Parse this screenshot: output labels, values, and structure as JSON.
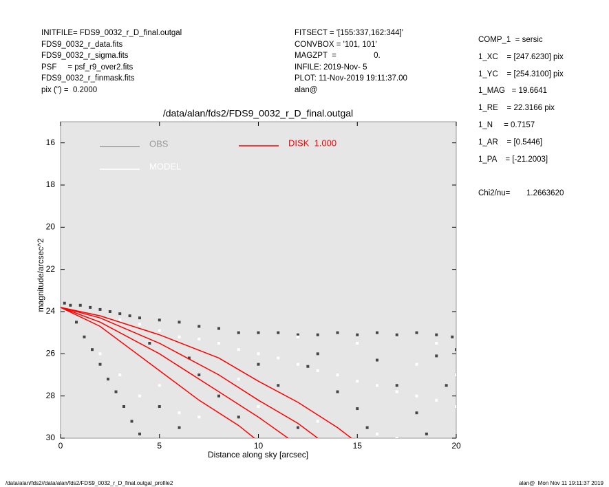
{
  "header": {
    "left": [
      "INITFILE= FDS9_0032_r_D_final.outgal",
      "FDS9_0032_r_data.fits",
      "FDS9_0032_r_sigma.fits",
      "PSF     = psf_r9_over2.fits",
      "FDS9_0032_r_finmask.fits",
      "pix (\") =  0.2000"
    ],
    "middle": [
      "FITSECT = '[155:337,162:344]'",
      "CONVBOX = '101, 101'",
      "MAGZPT  =                 0.",
      "INFILE: 2019-Nov- 5",
      "PLOT: 11-Nov-2019 19:11:37.00",
      "alan@"
    ],
    "right": [
      "COMP_1  = sersic",
      "1_XC    = [247.6230] pix",
      "1_YC    = [254.3100] pix",
      "1_MAG   = 19.6641",
      "1_RE    = 22.3166 pix",
      "1_N     = 0.7157",
      "1_AR    = [0.5446]",
      "1_PA    = [-21.2003]"
    ],
    "chi_label": "Chi2/nu=",
    "chi_value": "1.2663620"
  },
  "footer": {
    "left": "/data/alan/fds2//data/alan/fds2/FDS9_0032_r_D_final.outgal_profile2",
    "right": "alan@  Mon Nov 11 19:11:37 2019"
  },
  "chart_data": {
    "type": "scatter",
    "title": "/data/alan/fds2/FDS9_0032_r_D_final.outgal",
    "x_label": "Distance along sky [arcsec]",
    "y_label": "magnitude/arcsec^2",
    "xlim": [
      0,
      20
    ],
    "xticks": [
      0,
      5,
      10,
      15,
      20
    ],
    "ylim": [
      30,
      15
    ],
    "yticks": [
      16,
      18,
      20,
      22,
      24,
      26,
      28,
      30
    ],
    "series": [
      {
        "name": "OBS",
        "color": "#454545",
        "legend_color": "#999999",
        "x": [
          0.2,
          0.5,
          1,
          1.5,
          2,
          2.5,
          3,
          3.5,
          4,
          0.8,
          1.2,
          1.6,
          2,
          2.4,
          2.8,
          3.2,
          3.6,
          4,
          5,
          6,
          7,
          8,
          9,
          10,
          11,
          12,
          13,
          14,
          15,
          16,
          17,
          18,
          19,
          19.8,
          5,
          6,
          7,
          8,
          9,
          10,
          11,
          12,
          13,
          14,
          15,
          16,
          17,
          18,
          19,
          19.5,
          18.5,
          15.5,
          20,
          12.5,
          4.5,
          6.5
        ],
        "values": [
          23.6,
          23.7,
          23.7,
          23.8,
          23.9,
          24,
          24.1,
          24.2,
          24.3,
          24.5,
          25.2,
          25.8,
          26.5,
          27.2,
          27.8,
          28.5,
          29.2,
          29.8,
          24.4,
          24.5,
          24.7,
          24.8,
          25,
          25,
          25,
          25.1,
          25.1,
          25,
          25.1,
          25,
          25.1,
          25,
          25.1,
          25.2,
          28.5,
          29.5,
          27,
          28,
          29,
          26.5,
          27.5,
          29.5,
          26,
          27.8,
          28.6,
          26.3,
          27.5,
          28.8,
          26.1,
          27.5,
          29.8,
          29.5,
          25.8,
          26.6,
          25.5,
          26.2
        ]
      },
      {
        "name": "MODEL",
        "color": "#ffffff",
        "legend_color": "#ffffff",
        "x": [
          3,
          4,
          5,
          6,
          7,
          8,
          9,
          10,
          11,
          12,
          13,
          14,
          15,
          16,
          17,
          18,
          19,
          20,
          5,
          7,
          10,
          13,
          16,
          18,
          19,
          15,
          12,
          9,
          6,
          4,
          3,
          2,
          17,
          20
        ],
        "values": [
          24.4,
          24.6,
          24.9,
          25.2,
          25.3,
          25.5,
          25.8,
          26,
          26.2,
          26.5,
          26.8,
          27,
          27.3,
          27.5,
          27.8,
          28,
          28.2,
          28.5,
          27.5,
          29,
          28.5,
          29.2,
          29.8,
          26.5,
          25.5,
          25.5,
          25.2,
          27.2,
          28.8,
          28,
          27,
          26,
          30,
          27
        ]
      }
    ],
    "disk": {
      "name": "DISK  1.000",
      "color": "#ff0000",
      "curves": [
        {
          "x": [
            0,
            2,
            5,
            8,
            10,
            12,
            14,
            14.7
          ],
          "values": [
            23.8,
            24.2,
            25.1,
            26.2,
            27.3,
            28.3,
            29.5,
            30
          ]
        },
        {
          "x": [
            0,
            2,
            5,
            8,
            10,
            12,
            13
          ],
          "values": [
            23.8,
            24.3,
            25.5,
            27,
            28.2,
            29.3,
            30
          ]
        },
        {
          "x": [
            0,
            2,
            5,
            8,
            10,
            11.5
          ],
          "values": [
            23.8,
            24.5,
            26,
            27.8,
            29,
            30
          ]
        },
        {
          "x": [
            0,
            2,
            5,
            7,
            9,
            9.8
          ],
          "values": [
            23.8,
            24.7,
            26.8,
            28.2,
            29.4,
            30
          ]
        }
      ]
    }
  }
}
